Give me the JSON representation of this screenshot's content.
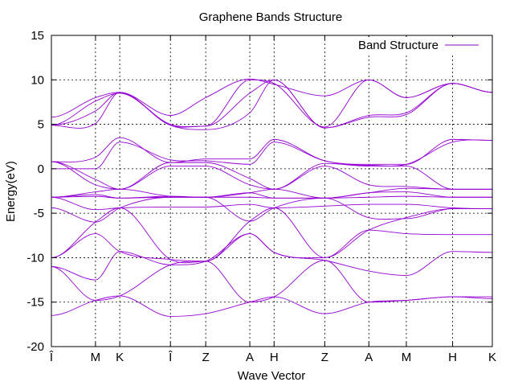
{
  "chart_data": {
    "type": "line",
    "title": "Graphene Bands Structure",
    "xlabel": "Wave Vector",
    "ylabel": "Energy(eV)",
    "ylim": [
      -20,
      15
    ],
    "yticks": [
      -20,
      -15,
      -10,
      -5,
      0,
      5,
      10,
      15
    ],
    "xlim": [
      0,
      10
    ],
    "kpoints": [
      {
        "label": "Î",
        "x": 0
      },
      {
        "label": "M",
        "x": 1
      },
      {
        "label": "K",
        "x": 1.55
      },
      {
        "label": "Î",
        "x": 2.7
      },
      {
        "label": "Z",
        "x": 3.5
      },
      {
        "label": "A",
        "x": 4.5
      },
      {
        "label": "H",
        "x": 5.05
      },
      {
        "label": "Z",
        "x": 6.2
      },
      {
        "label": "A",
        "x": 7.2
      },
      {
        "label": "M",
        "x": 8.05
      },
      {
        "label": "H",
        "x": 9.1
      },
      {
        "label": "K",
        "x": 10
      }
    ],
    "grid": true,
    "legend_position": "top-right",
    "series_color": "#9400d3",
    "series": [
      {
        "name": "Band Structure",
        "x": [
          0,
          1,
          1.55,
          2.7,
          3.5,
          4.5,
          5.05,
          6.2,
          7.2,
          8.05,
          9.1,
          10
        ],
        "values": [
          -16.5,
          -14.8,
          -14.3,
          -16.6,
          -16.3,
          -15.0,
          -14.4,
          -16.3,
          -15.0,
          -14.8,
          -14.4,
          -14.4
        ]
      },
      {
        "name": "",
        "x": [
          0,
          1,
          1.55,
          2.7,
          3.5,
          4.5,
          5.05,
          6.2,
          7.2,
          8.05,
          9.1,
          10
        ],
        "values": [
          -11.0,
          -14.8,
          -14.3,
          -10.8,
          -10.4,
          -15.0,
          -14.4,
          -10.3,
          -15.0,
          -14.8,
          -14.4,
          -14.6
        ]
      },
      {
        "name": "",
        "x": [
          0,
          1,
          1.55,
          2.7,
          3.5,
          4.5,
          5.05,
          6.2,
          7.2,
          8.05,
          9.1,
          10
        ],
        "values": [
          -11.0,
          -12.5,
          -9.3,
          -10.8,
          -10.4,
          -7.3,
          -9.4,
          -10.3,
          -11.5,
          -12.0,
          -9.3,
          -9.4
        ]
      },
      {
        "name": "",
        "x": [
          0,
          1,
          1.55,
          2.7,
          3.5,
          4.5,
          5.05,
          6.2,
          7.2,
          8.05,
          9.1,
          10
        ],
        "values": [
          -10.0,
          -7.3,
          -9.3,
          -10.2,
          -10.4,
          -7.3,
          -9.4,
          -10.0,
          -6.9,
          -7.3,
          -7.4,
          -7.4
        ]
      },
      {
        "name": "",
        "x": [
          0,
          1,
          1.55,
          2.7,
          3.5,
          4.5,
          5.05,
          6.2,
          7.2,
          8.05,
          9.1,
          10
        ],
        "values": [
          -10.0,
          -6.0,
          -4.4,
          -10.2,
          -10.4,
          -5.9,
          -4.4,
          -10.0,
          -6.9,
          -5.5,
          -4.5,
          -4.5
        ]
      },
      {
        "name": "",
        "x": [
          0,
          1,
          1.55,
          2.7,
          3.5,
          4.5,
          5.05,
          6.2,
          7.2,
          8.05,
          9.1,
          10
        ],
        "values": [
          -4.4,
          -6.0,
          -4.4,
          -3.2,
          -3.2,
          -5.9,
          -4.4,
          -3.3,
          -5.5,
          -5.6,
          -4.5,
          -4.5
        ]
      },
      {
        "name": "",
        "x": [
          0,
          1,
          1.55,
          2.7,
          3.5,
          4.5,
          5.05,
          6.2,
          7.2,
          8.05,
          9.1,
          10
        ],
        "values": [
          -3.2,
          -4.6,
          -4.4,
          -4.3,
          -4.3,
          -4.0,
          -4.4,
          -4.2,
          -4.0,
          -4.0,
          -4.4,
          -4.5
        ]
      },
      {
        "name": "",
        "x": [
          0,
          1,
          1.55,
          2.7,
          3.5,
          4.5,
          5.05,
          6.2,
          7.2,
          8.05,
          9.1,
          10
        ],
        "values": [
          -3.2,
          -3.1,
          -3.3,
          -3.2,
          -3.2,
          -3.2,
          -3.3,
          -3.3,
          -3.2,
          -3.1,
          -3.2,
          -3.2
        ]
      },
      {
        "name": "",
        "x": [
          0,
          1,
          1.55,
          2.7,
          3.5,
          4.5,
          5.05,
          6.2,
          7.2,
          8.05,
          9.1,
          10
        ],
        "values": [
          -3.2,
          -2.9,
          -3.3,
          -3.1,
          -3.2,
          -2.7,
          -3.3,
          -3.3,
          -2.7,
          -2.6,
          -3.2,
          -3.2
        ]
      },
      {
        "name": "",
        "x": [
          0,
          1,
          1.55,
          2.7,
          3.5,
          4.5,
          5.05,
          6.2,
          7.2,
          8.05,
          9.1,
          10
        ],
        "values": [
          -3.2,
          -2.6,
          -2.3,
          -3.1,
          -3.2,
          -2.7,
          -2.3,
          -3.3,
          -2.7,
          -2.2,
          -2.3,
          -2.3
        ]
      },
      {
        "name": "",
        "x": [
          0,
          1,
          1.55,
          2.7,
          3.5,
          4.5,
          5.05,
          6.2,
          7.2,
          8.05,
          9.1,
          10
        ],
        "values": [
          0.8,
          -1.8,
          -2.3,
          0.3,
          0.3,
          -1.8,
          -2.3,
          0.3,
          -1.8,
          -2.0,
          -2.3,
          -2.3
        ]
      },
      {
        "name": "",
        "x": [
          0,
          1,
          1.55,
          2.7,
          3.5,
          4.5,
          5.05,
          6.2,
          7.2,
          8.05,
          9.1,
          10
        ],
        "values": [
          0.8,
          -1.2,
          -2.3,
          0.7,
          0.7,
          -1.1,
          -2.3,
          0.6,
          0.3,
          0.3,
          -2.3,
          -2.3
        ]
      },
      {
        "name": "",
        "x": [
          0,
          1,
          1.55,
          2.7,
          3.5,
          4.5,
          5.05,
          6.2,
          7.2,
          8.05,
          9.1,
          10
        ],
        "values": [
          0.0,
          0.0,
          3.0,
          1.0,
          0.9,
          0.5,
          3.0,
          0.9,
          0.4,
          0.5,
          3.0,
          3.2
        ]
      },
      {
        "name": "",
        "x": [
          0,
          1,
          1.55,
          2.7,
          3.5,
          4.5,
          5.05,
          6.2,
          7.2,
          8.05,
          9.1,
          10
        ],
        "values": [
          0.8,
          1.3,
          3.5,
          0.7,
          1.1,
          1.1,
          3.3,
          0.9,
          0.5,
          0.5,
          3.3,
          3.2
        ]
      },
      {
        "name": "",
        "x": [
          0,
          1,
          1.55,
          2.7,
          3.5,
          4.5,
          5.05,
          6.2,
          7.2,
          8.05,
          9.1,
          10
        ],
        "values": [
          4.9,
          5.1,
          8.6,
          4.9,
          4.4,
          6.3,
          10.0,
          4.6,
          5.8,
          6.1,
          9.6,
          8.6
        ]
      },
      {
        "name": "",
        "x": [
          0,
          1,
          1.55,
          2.7,
          3.5,
          4.5,
          5.05,
          6.2,
          7.2,
          8.05,
          9.1,
          10
        ],
        "values": [
          4.9,
          6.5,
          8.6,
          4.9,
          4.8,
          8.5,
          10.0,
          4.6,
          6.0,
          6.3,
          9.6,
          8.6
        ]
      },
      {
        "name": "",
        "x": [
          0,
          1,
          1.55,
          2.7,
          3.5,
          4.5,
          5.05,
          6.2,
          7.2,
          8.05,
          9.1,
          10
        ],
        "values": [
          4.9,
          7.6,
          8.5,
          5.0,
          4.8,
          10.0,
          9.6,
          4.7,
          10.0,
          8.0,
          9.6,
          8.6
        ]
      },
      {
        "name": "",
        "x": [
          0,
          1,
          1.55,
          2.7,
          3.5,
          4.5,
          5.05,
          6.2,
          7.2,
          8.05,
          9.1,
          10
        ],
        "values": [
          5.8,
          8.0,
          8.6,
          6.0,
          8.0,
          10.1,
          9.5,
          8.2,
          10.0,
          8.0,
          9.6,
          8.6
        ]
      }
    ]
  }
}
